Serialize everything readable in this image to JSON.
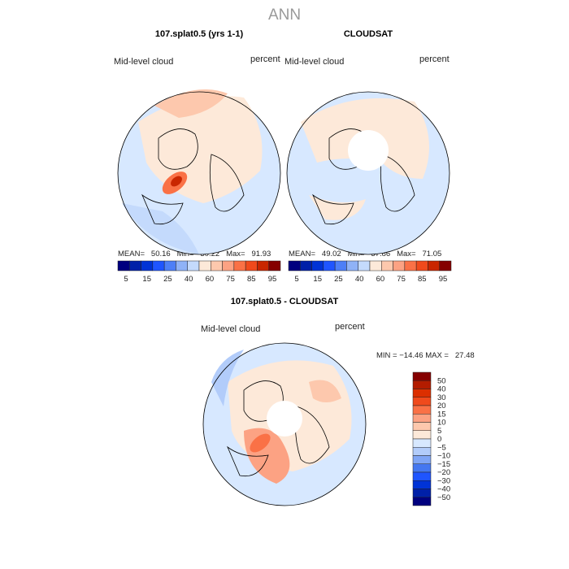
{
  "title": "ANN",
  "panels": [
    {
      "title": "107.splat0.5 (yrs 1-1)",
      "left_label": "Mid-level cloud",
      "right_label": "percent",
      "stats": "MEAN=   50.16   Min=   30.22   Max=   91.93"
    },
    {
      "title": "CLOUDSAT",
      "left_label": "Mid-level cloud",
      "right_label": "percent",
      "stats": "MEAN=   49.02   Min=   37.86   Max=   71.05"
    },
    {
      "title": "107.splat0.5 - CLOUDSAT",
      "left_label": "Mid-level cloud",
      "right_label": "percent",
      "stats": "MIN = −14.46 MAX =   27.48"
    }
  ],
  "colorbar": {
    "colors": [
      "#00007f",
      "#0020a8",
      "#0033d6",
      "#1f55ff",
      "#4477f0",
      "#7fa5f5",
      "#b2ccfa",
      "#d7e8ff",
      "#fde9d9",
      "#fdc8ad",
      "#fca283",
      "#fa7146",
      "#f04a1c",
      "#dc2f00",
      "#b31c00",
      "#850000"
    ],
    "main_colors": [
      "#00007f",
      "#0020a8",
      "#0033d6",
      "#1f55ff",
      "#4d7ff7",
      "#8fb2f7",
      "#c4dafc",
      "#fde9d9",
      "#fdc8ad",
      "#fca283",
      "#fa7146",
      "#f04a1c",
      "#c92600",
      "#850000"
    ],
    "main_labels": [
      "5",
      "15",
      "25",
      "40",
      "60",
      "75",
      "85",
      "95"
    ],
    "diff_labels": [
      "50",
      "40",
      "30",
      "20",
      "15",
      "10",
      "5",
      "0",
      "−5",
      "−10",
      "−15",
      "−20",
      "−30",
      "−40",
      "−50"
    ]
  }
}
